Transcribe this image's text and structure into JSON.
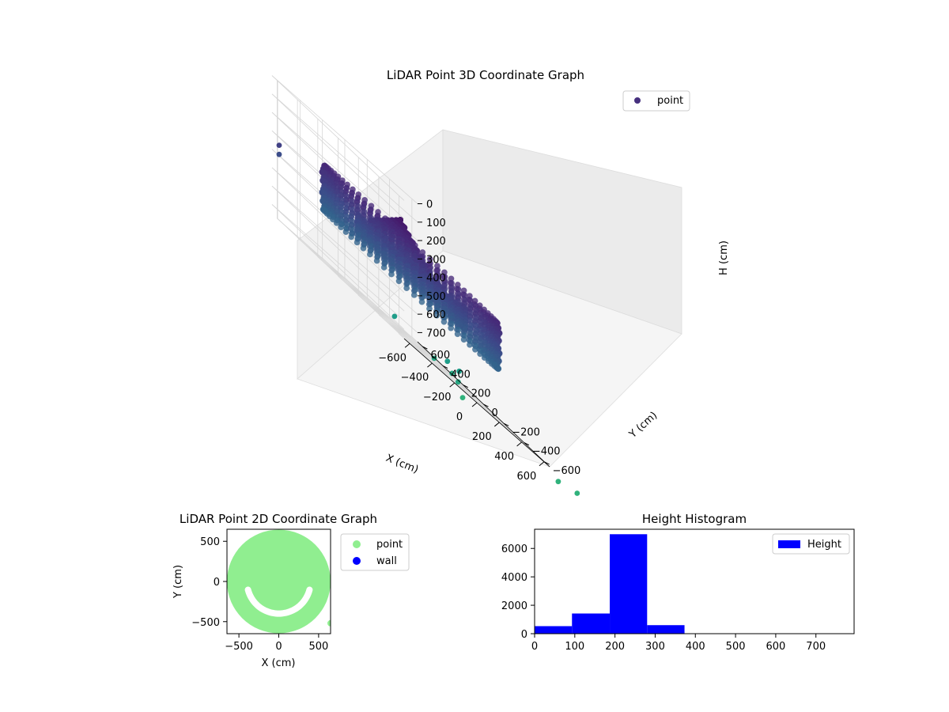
{
  "chart_data": [
    {
      "type": "scatter3d",
      "title": "LiDAR Point 3D Coordinate Graph",
      "xlabel": "X (cm)",
      "ylabel": "Y (cm)",
      "zlabel": "H (cm)",
      "xticks": [
        "−600",
        "−400",
        "−200",
        "0",
        "200",
        "400",
        "600"
      ],
      "yticks": [
        "−600",
        "−400",
        "−200",
        "0",
        "200",
        "400",
        "600"
      ],
      "zticks": [
        "0",
        "100",
        "200",
        "300",
        "400",
        "500",
        "600",
        "700"
      ],
      "xlim": [
        -650,
        650
      ],
      "ylim": [
        -650,
        650
      ],
      "zlim": [
        750,
        0
      ],
      "legend": {
        "position": "top-right",
        "entries": [
          "point"
        ]
      },
      "colormap": "viridis",
      "series": [
        {
          "name": "point",
          "color": "#46307e",
          "structures": {
            "outer_ring": {
              "radius": 580,
              "h_top": 230,
              "h_bottom": 490
            },
            "inner_arc": {
              "radius": 360,
              "angle_deg": [
                150,
                330
              ],
              "h_top": 330,
              "h_bottom": 420
            },
            "center_mound": {
              "radius": 200,
              "h_peak": 150,
              "h_base": 300
            }
          },
          "outliers": [
            {
              "x": -950,
              "y": 250,
              "h": 330
            },
            {
              "x": -950,
              "y": 250,
              "h": 380
            },
            {
              "x": -100,
              "y": 50,
              "h": 700
            },
            {
              "x": 150,
              "y": -300,
              "h": 740
            },
            {
              "x": 300,
              "y": 100,
              "h": 740
            },
            {
              "x": 550,
              "y": 200,
              "h": 740
            },
            {
              "x": 600,
              "y": 300,
              "h": 700
            },
            {
              "x": 750,
              "y": 350,
              "h": 700
            },
            {
              "x": 500,
              "y": -900,
              "h": 780
            },
            {
              "x": 950,
              "y": -1200,
              "h": 780
            },
            {
              "x": 1350,
              "y": -150,
              "h": 780
            },
            {
              "x": -400,
              "y": -950,
              "h": 780
            },
            {
              "x": 1100,
              "y": -1000,
              "h": 800
            }
          ]
        }
      ]
    },
    {
      "type": "scatter",
      "title": "LiDAR Point 2D Coordinate Graph",
      "xlabel": "X (cm)",
      "ylabel": "Y (cm)",
      "xticks": [
        "−500",
        "0",
        "500"
      ],
      "yticks": [
        "500",
        "0",
        "−500"
      ],
      "xlim": [
        -650,
        650
      ],
      "ylim": [
        -650,
        650
      ],
      "legend": {
        "position": "right",
        "entries": [
          "point",
          "wall"
        ]
      },
      "series": [
        {
          "name": "point",
          "color": "#90ee90",
          "filled_disc_radius": 650,
          "gap_arc_radius": 400,
          "gap_arc_deg": [
            195,
            345
          ]
        },
        {
          "name": "wall",
          "color": "#0000ff",
          "points": []
        }
      ]
    },
    {
      "type": "bar",
      "title": "Height Histogram",
      "xticks": [
        "0",
        "100",
        "200",
        "300",
        "400",
        "500",
        "600",
        "700"
      ],
      "yticks": [
        "0",
        "2000",
        "4000",
        "6000"
      ],
      "xlim": [
        0,
        795
      ],
      "ylim": [
        0,
        7350
      ],
      "legend": {
        "position": "top-right",
        "entries": [
          "Height"
        ]
      },
      "series": [
        {
          "name": "Height",
          "color": "#0000ff",
          "bins": [
            {
              "x0": 0,
              "x1": 93,
              "count": 530
            },
            {
              "x0": 93,
              "x1": 187,
              "count": 1420
            },
            {
              "x0": 187,
              "x1": 280,
              "count": 7000
            },
            {
              "x0": 280,
              "x1": 373,
              "count": 600
            },
            {
              "x0": 373,
              "x1": 467,
              "count": 0
            },
            {
              "x0": 467,
              "x1": 560,
              "count": 0
            },
            {
              "x0": 560,
              "x1": 653,
              "count": 0
            },
            {
              "x0": 653,
              "x1": 747,
              "count": 0
            }
          ]
        }
      ]
    }
  ]
}
